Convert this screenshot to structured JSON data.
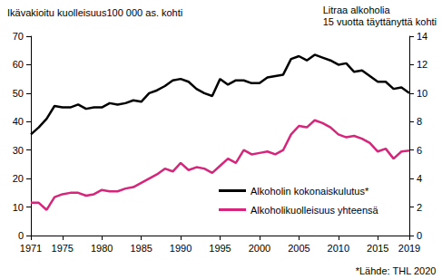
{
  "chart_data": {
    "type": "line",
    "y_label": "Ikävakioitu kuolleisuus100 000 as. kohti",
    "y2_label": "Litraa alkoholia\n15 vuotta täyttänyttä kohti",
    "annotation": "*Lähde: THL 2020",
    "x": [
      1971,
      1972,
      1973,
      1974,
      1975,
      1976,
      1977,
      1978,
      1979,
      1980,
      1981,
      1982,
      1983,
      1984,
      1985,
      1986,
      1987,
      1988,
      1989,
      1990,
      1991,
      1992,
      1993,
      1994,
      1995,
      1996,
      1997,
      1998,
      1999,
      2000,
      2001,
      2002,
      2003,
      2004,
      2005,
      2006,
      2007,
      2008,
      2009,
      2010,
      2011,
      2012,
      2013,
      2014,
      2015,
      2016,
      2017,
      2018,
      2019
    ],
    "series": [
      {
        "name": "Alkoholin kokonaiskulutus*",
        "color": "#000000",
        "axis": "y2",
        "values": [
          7.1,
          7.6,
          8.2,
          9.1,
          9.0,
          9.0,
          9.2,
          8.9,
          9.0,
          9.0,
          9.3,
          9.2,
          9.3,
          9.5,
          9.4,
          10.0,
          10.2,
          10.5,
          10.9,
          11.0,
          10.8,
          10.3,
          10.0,
          9.8,
          11.0,
          10.6,
          10.9,
          10.9,
          10.7,
          10.7,
          11.1,
          11.2,
          11.3,
          12.4,
          12.6,
          12.3,
          12.7,
          12.5,
          12.3,
          12.0,
          12.1,
          11.5,
          11.6,
          11.2,
          10.8,
          10.8,
          10.3,
          10.4,
          10.0
        ]
      },
      {
        "name": "Alkoholikuolleisuus yhteensä",
        "color": "#d6267c",
        "axis": "y",
        "values": [
          11.5,
          11.5,
          9,
          13.5,
          14.5,
          15,
          15,
          14,
          14.5,
          16,
          15.5,
          15.5,
          16.5,
          17,
          18.5,
          20,
          21.5,
          23.5,
          22.5,
          25.5,
          23,
          24,
          23.5,
          22,
          24.5,
          27,
          25.5,
          30,
          28.5,
          29,
          29.5,
          28.5,
          30,
          35.5,
          38.5,
          38,
          40.5,
          39.5,
          38,
          35.5,
          34.5,
          35,
          34,
          32.5,
          29.5,
          30.5,
          27,
          29.5,
          29.8
        ]
      }
    ],
    "xlim": [
      1971,
      2019
    ],
    "xticks": [
      1971,
      1975,
      1980,
      1985,
      1990,
      1995,
      2000,
      2005,
      2010,
      2015,
      2019
    ],
    "ylim": [
      0,
      70
    ],
    "yticks": [
      0,
      10,
      20,
      30,
      40,
      50,
      60,
      70
    ],
    "y2lim": [
      0,
      14
    ],
    "y2ticks": [
      0,
      2,
      4,
      6,
      8,
      10,
      12,
      14
    ],
    "grid": false,
    "legend": "lower right"
  }
}
